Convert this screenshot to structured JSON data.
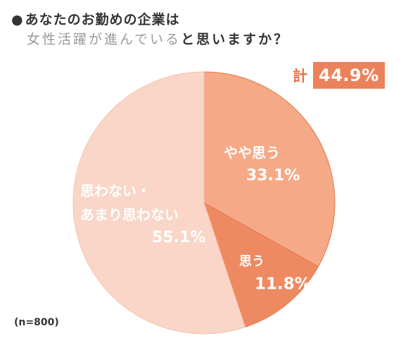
{
  "title": {
    "bullet": "●",
    "line1": "あなたのお勤めの企業は",
    "line2_highlight": "女性活躍が進んでいる",
    "line2_rest": "と思いますか？"
  },
  "total": {
    "label": "計",
    "value": "44.9%"
  },
  "sample": "(n=800)",
  "colors": {
    "somewhat": "#f5a986",
    "agree": "#ee8a62",
    "disagree": "#f9d6c8",
    "edge": "#ffffff",
    "accent": "#ec825c"
  },
  "chart_data": {
    "type": "pie",
    "start_angle_deg": 0,
    "direction": "clockwise",
    "slices": [
      {
        "name": "やや思う",
        "value": 33.1,
        "label_lines": [
          "やや思う"
        ],
        "pct": "33.1%"
      },
      {
        "name": "思う",
        "value": 11.8,
        "label_lines": [
          "思う"
        ],
        "pct": "11.8%"
      },
      {
        "name": "思わない・あまり思わない",
        "value": 55.1,
        "label_lines": [
          "思わない・",
          "あまり思わない"
        ],
        "pct": "55.1%"
      }
    ]
  }
}
